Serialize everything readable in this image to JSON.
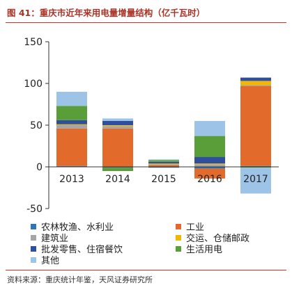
{
  "header": {
    "title": "图 41：重庆市近年来用电量增量结构（亿千瓦时）"
  },
  "chart_data": {
    "type": "bar",
    "stacked": true,
    "categories": [
      "2013",
      "2014",
      "2015",
      "2016",
      "2017"
    ],
    "ylim": [
      -50,
      150
    ],
    "yticks": [
      -50,
      0,
      50,
      100,
      150
    ],
    "grid": false,
    "legend_position": "bottom",
    "series": [
      {
        "name": "农林牧渔、水利业",
        "color": "#2e75b6",
        "values": [
          1,
          -1,
          -1,
          -2,
          1
        ]
      },
      {
        "name": "工业",
        "color": "#e26b2b",
        "values": [
          45,
          46,
          2,
          -12,
          96
        ]
      },
      {
        "name": "建筑业",
        "color": "#a5a5a5",
        "values": [
          4,
          3,
          1,
          3,
          1
        ]
      },
      {
        "name": "交运、仓储邮政",
        "color": "#f2b700",
        "values": [
          1,
          1,
          1,
          1,
          5
        ]
      },
      {
        "name": "批发零售、住宿餐饮",
        "color": "#2f4f9e",
        "values": [
          5,
          5,
          2,
          8,
          4
        ]
      },
      {
        "name": "生活用电",
        "color": "#5a9e3a",
        "values": [
          17,
          -4,
          2,
          25,
          -1
        ]
      },
      {
        "name": "其他",
        "color": "#9dc3e6",
        "values": [
          17,
          3,
          1,
          18,
          -31
        ]
      }
    ]
  },
  "source": "资料来源：重庆统计年鉴，天风证券研究所"
}
